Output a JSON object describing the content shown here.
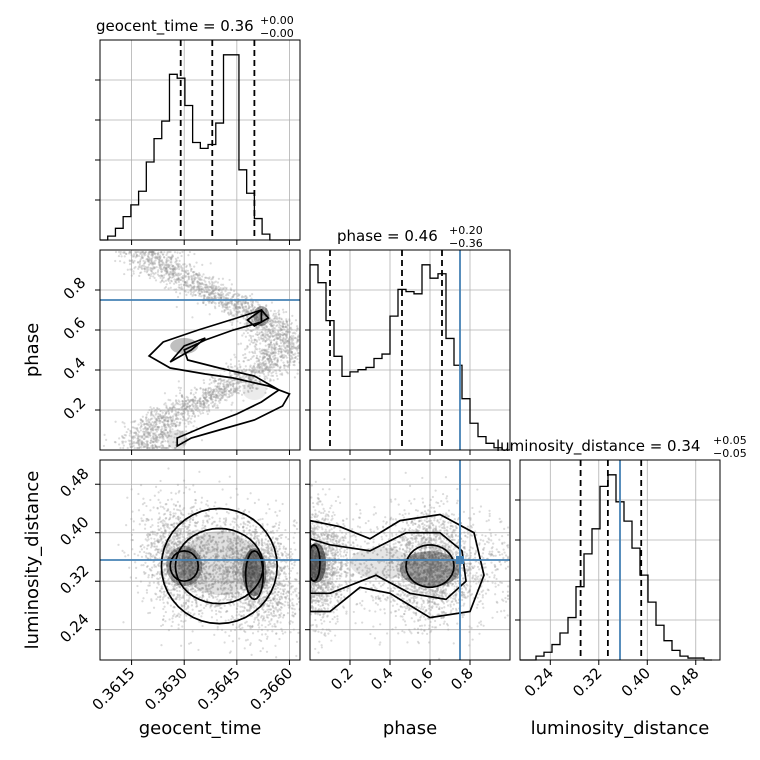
{
  "chart_data": {
    "type": "corner",
    "parameters": [
      {
        "name": "geocent_time",
        "title_prefix": "geocent_time = 0.36",
        "title_sup": "+0.00",
        "title_sub": "−0.00",
        "range": [
          0.3606,
          0.3663
        ],
        "ticks": [
          0.3615,
          0.363,
          0.3645,
          0.366
        ],
        "tick_labels": [
          "0.3615",
          "0.3630",
          "0.3645",
          "0.3660"
        ],
        "quantiles": [
          0.3629,
          0.3638,
          0.365
        ],
        "truth": null,
        "hist_edges": [
          0.3606,
          0.36082,
          0.36104,
          0.36126,
          0.36148,
          0.3617,
          0.36192,
          0.36214,
          0.36236,
          0.36258,
          0.3628,
          0.36302,
          0.36324,
          0.36346,
          0.36368,
          0.3639,
          0.36412,
          0.36434,
          0.36456,
          0.36478,
          0.365,
          0.36522,
          0.36544,
          0.36566,
          0.36588,
          0.3661,
          0.3663
        ],
        "hist_counts": [
          0,
          2,
          6,
          12,
          18,
          25,
          40,
          52,
          61,
          85,
          83,
          69,
          50,
          47,
          49,
          60,
          95,
          95,
          36,
          24,
          11,
          3,
          0,
          0,
          0,
          0
        ]
      },
      {
        "name": "phase",
        "title_prefix": "phase = 0.46",
        "title_sup": "+0.20",
        "title_sub": "−0.36",
        "range": [
          0.0,
          1.0
        ],
        "ticks": [
          0.2,
          0.4,
          0.6,
          0.8
        ],
        "tick_labels": [
          "0.2",
          "0.4",
          "0.6",
          "0.8"
        ],
        "quantiles": [
          0.1,
          0.46,
          0.66
        ],
        "truth": 0.75,
        "hist_edges": [
          0.0,
          0.04,
          0.08,
          0.12,
          0.16,
          0.2,
          0.24,
          0.28,
          0.32,
          0.36,
          0.4,
          0.44,
          0.48,
          0.52,
          0.56,
          0.6,
          0.64,
          0.68,
          0.72,
          0.76,
          0.8,
          0.84,
          0.88,
          0.92,
          0.96,
          1.0
        ],
        "hist_counts": [
          83,
          75,
          58,
          42,
          33,
          35,
          36,
          37,
          41,
          43,
          60,
          72,
          71,
          70,
          83,
          77,
          79,
          50,
          38,
          23,
          12,
          6,
          3,
          1,
          0
        ]
      },
      {
        "name": "luminosity_distance",
        "title_prefix": "luminosity_distance = 0.34",
        "title_sup": "+0.05",
        "title_sub": "−0.05",
        "range": [
          0.19,
          0.52
        ],
        "ticks": [
          0.24,
          0.32,
          0.4,
          0.48
        ],
        "tick_labels": [
          "0.24",
          "0.32",
          "0.40",
          "0.48"
        ],
        "quantiles": [
          0.29,
          0.335,
          0.39
        ],
        "truth": 0.355,
        "hist_edges": [
          0.19,
          0.2032,
          0.2164,
          0.2296,
          0.2428,
          0.256,
          0.2692,
          0.2824,
          0.2956,
          0.3088,
          0.322,
          0.3352,
          0.3484,
          0.3616,
          0.3748,
          0.388,
          0.4012,
          0.4144,
          0.4276,
          0.4408,
          0.454,
          0.4672,
          0.4804,
          0.4936,
          0.5068
        ],
        "hist_counts": [
          0,
          0,
          2,
          4,
          8,
          14,
          22,
          38,
          55,
          68,
          90,
          96,
          82,
          72,
          58,
          44,
          30,
          18,
          10,
          5,
          2,
          1,
          1,
          0
        ]
      }
    ],
    "contour_levels": 4,
    "truth_color": "#4682b4",
    "grid": true
  }
}
